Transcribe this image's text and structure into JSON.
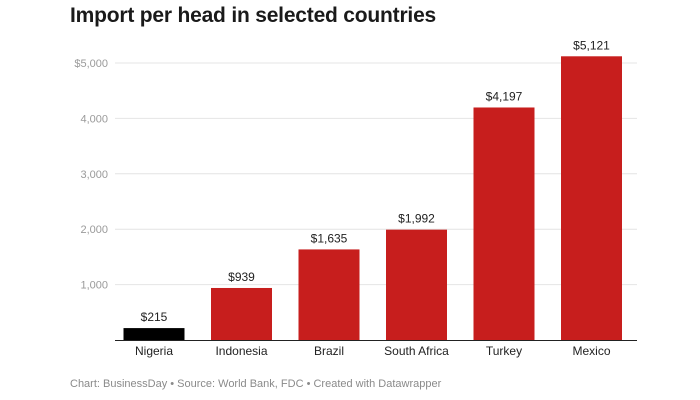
{
  "title": "Import per head in selected countries",
  "footer": "Chart: BusinessDay • Source: World Bank, FDC • Created with Datawrapper",
  "colors": {
    "highlight": "#000000",
    "bar": "#c71e1d",
    "grid": "#e4e4e4",
    "axis": "#222222"
  },
  "chart_data": {
    "type": "bar",
    "title": "Import per head in selected countries",
    "xlabel": "",
    "ylabel": "",
    "categories": [
      "Nigeria",
      "Indonesia",
      "Brazil",
      "South Africa",
      "Turkey",
      "Mexico"
    ],
    "values": [
      215,
      939,
      1635,
      1992,
      4197,
      5121
    ],
    "data_labels": [
      "$215",
      "$939",
      "$1,635",
      "$1,992",
      "$4,197",
      "$5,121"
    ],
    "bar_colors": [
      "#000000",
      "#c71e1d",
      "#c71e1d",
      "#c71e1d",
      "#c71e1d",
      "#c71e1d"
    ],
    "yticks": [
      1000,
      2000,
      3000,
      4000,
      5000
    ],
    "ytick_labels": [
      "1,000",
      "2,000",
      "3,000",
      "4,000",
      "$5,000"
    ],
    "ylim": [
      0,
      5000
    ],
    "grid": true,
    "legend": "none"
  }
}
